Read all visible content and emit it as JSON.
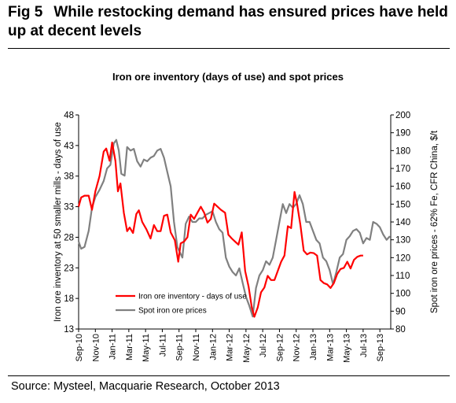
{
  "figure": {
    "number": "Fig 5",
    "title": "While restocking demand has ensured prices have held up at decent levels",
    "source": "Source: Mysteel, Macquarie Research, October 2013"
  },
  "chart_data": {
    "type": "line",
    "title": "Iron ore inventory (days of use) and spot prices",
    "ylabel": "Iron ore inventory at 50 smaller mills - days of use",
    "y2label": "Spot iron ore prices - 62% Fe, CFR China, $/t",
    "ylim": [
      13,
      48
    ],
    "yticks": [
      13,
      18,
      23,
      28,
      33,
      38,
      43,
      48
    ],
    "y2lim": [
      80,
      200
    ],
    "y2ticks": [
      80,
      90,
      100,
      110,
      120,
      130,
      140,
      150,
      160,
      170,
      180,
      190,
      200
    ],
    "xlim": [
      0,
      37.3
    ],
    "xticks": [
      {
        "x": 0,
        "label": "Sep-10"
      },
      {
        "x": 2,
        "label": "Nov-10"
      },
      {
        "x": 4,
        "label": "Jan-11"
      },
      {
        "x": 6,
        "label": "Mar-11"
      },
      {
        "x": 8,
        "label": "May-11"
      },
      {
        "x": 10,
        "label": "Jul-11"
      },
      {
        "x": 12,
        "label": "Sep-11"
      },
      {
        "x": 14,
        "label": "Nov-11"
      },
      {
        "x": 16,
        "label": "Jan-12"
      },
      {
        "x": 18,
        "label": "Mar-12"
      },
      {
        "x": 20,
        "label": "May-12"
      },
      {
        "x": 22,
        "label": "Jul-12"
      },
      {
        "x": 24,
        "label": "Sep-12"
      },
      {
        "x": 26,
        "label": "Nov-12"
      },
      {
        "x": 28,
        "label": "Jan-13"
      },
      {
        "x": 30,
        "label": "Mar-13"
      },
      {
        "x": 32,
        "label": "May-13"
      },
      {
        "x": 34,
        "label": "Jul-13"
      },
      {
        "x": 36,
        "label": "Sep-13"
      }
    ],
    "grid": false,
    "legend_position": "bottom-left",
    "series": [
      {
        "name": "Iron ore inventory - days of use",
        "axis": "left",
        "color": "#ff0000",
        "points": [
          [
            0,
            33.0
          ],
          [
            0.3,
            34.5
          ],
          [
            0.7,
            34.8
          ],
          [
            1.2,
            34.8
          ],
          [
            1.6,
            32.5
          ],
          [
            2.0,
            35.5
          ],
          [
            2.5,
            38.0
          ],
          [
            3.0,
            42.0
          ],
          [
            3.3,
            42.5
          ],
          [
            3.7,
            40.5
          ],
          [
            4.0,
            43.5
          ],
          [
            4.4,
            40.5
          ],
          [
            4.7,
            35.5
          ],
          [
            5.0,
            36.8
          ],
          [
            5.4,
            32.0
          ],
          [
            5.8,
            29.0
          ],
          [
            6.1,
            29.6
          ],
          [
            6.5,
            28.7
          ],
          [
            6.9,
            31.8
          ],
          [
            7.2,
            32.4
          ],
          [
            7.6,
            30.5
          ],
          [
            8.1,
            29.3
          ],
          [
            8.6,
            27.8
          ],
          [
            9.0,
            30.0
          ],
          [
            9.4,
            29.0
          ],
          [
            9.8,
            29.0
          ],
          [
            10.2,
            31.5
          ],
          [
            10.6,
            31.7
          ],
          [
            11.0,
            28.8
          ],
          [
            11.5,
            27.5
          ],
          [
            11.9,
            24.0
          ],
          [
            12.2,
            27.0
          ],
          [
            12.6,
            27.3
          ],
          [
            13.0,
            28.0
          ],
          [
            13.4,
            31.7
          ],
          [
            13.8,
            31.0
          ],
          [
            14.2,
            32.0
          ],
          [
            14.6,
            33.0
          ],
          [
            15.0,
            32.0
          ],
          [
            15.4,
            30.4
          ],
          [
            15.8,
            31.0
          ],
          [
            16.2,
            33.5
          ],
          [
            16.6,
            33.0
          ],
          [
            17.0,
            32.5
          ],
          [
            17.5,
            32.0
          ],
          [
            17.9,
            28.4
          ],
          [
            18.3,
            27.8
          ],
          [
            18.7,
            27.3
          ],
          [
            19.1,
            26.8
          ],
          [
            19.5,
            28.8
          ],
          [
            19.9,
            22.5
          ],
          [
            20.3,
            20.0
          ],
          [
            20.7,
            16.5
          ],
          [
            21.0,
            15.0
          ],
          [
            21.4,
            16.5
          ],
          [
            21.8,
            19.0
          ],
          [
            22.2,
            19.8
          ],
          [
            22.6,
            21.7
          ],
          [
            23.0,
            21.0
          ],
          [
            23.4,
            21.0
          ],
          [
            23.8,
            22.5
          ],
          [
            24.2,
            24.0
          ],
          [
            24.6,
            25.0
          ],
          [
            25.0,
            29.8
          ],
          [
            25.4,
            29.5
          ],
          [
            25.8,
            35.4
          ],
          [
            26.1,
            33.5
          ],
          [
            26.5,
            30.0
          ],
          [
            26.9,
            25.8
          ],
          [
            27.3,
            25.2
          ],
          [
            27.7,
            25.5
          ],
          [
            28.1,
            25.4
          ],
          [
            28.5,
            25.0
          ],
          [
            28.9,
            21.0
          ],
          [
            29.3,
            20.5
          ],
          [
            29.7,
            20.3
          ],
          [
            30.1,
            19.7
          ],
          [
            30.5,
            20.5
          ],
          [
            30.9,
            22.0
          ],
          [
            31.3,
            22.8
          ],
          [
            31.7,
            23.0
          ],
          [
            32.1,
            24.0
          ],
          [
            32.5,
            22.9
          ],
          [
            32.9,
            24.3
          ],
          [
            33.3,
            24.8
          ],
          [
            33.7,
            25.0
          ],
          [
            34.0,
            25.0
          ]
        ]
      },
      {
        "name": "Spot iron ore prices",
        "axis": "right",
        "color": "#808080",
        "points": [
          [
            0,
            129.0
          ],
          [
            0.3,
            125.0
          ],
          [
            0.7,
            126.0
          ],
          [
            1.2,
            135.0
          ],
          [
            1.6,
            148.0
          ],
          [
            2.0,
            154.0
          ],
          [
            2.5,
            158.0
          ],
          [
            3.0,
            163.0
          ],
          [
            3.4,
            170.0
          ],
          [
            3.8,
            172.0
          ],
          [
            4.2,
            184.0
          ],
          [
            4.5,
            186.0
          ],
          [
            4.8,
            180.0
          ],
          [
            5.1,
            167.0
          ],
          [
            5.5,
            166.0
          ],
          [
            5.8,
            182.0
          ],
          [
            6.2,
            180.0
          ],
          [
            6.6,
            181.0
          ],
          [
            7.0,
            174.0
          ],
          [
            7.4,
            171.0
          ],
          [
            7.8,
            175.0
          ],
          [
            8.2,
            174.0
          ],
          [
            8.6,
            176.0
          ],
          [
            9.0,
            177.0
          ],
          [
            9.4,
            180.0
          ],
          [
            9.8,
            181.0
          ],
          [
            10.2,
            176.0
          ],
          [
            10.6,
            168.0
          ],
          [
            11.0,
            160.0
          ],
          [
            11.4,
            140.0
          ],
          [
            11.8,
            126.0
          ],
          [
            12.0,
            124.0
          ],
          [
            12.4,
            120.0
          ],
          [
            12.8,
            139.0
          ],
          [
            13.2,
            143.0
          ],
          [
            13.6,
            140.0
          ],
          [
            14.0,
            140.0
          ],
          [
            14.4,
            142.0
          ],
          [
            14.8,
            142.0
          ],
          [
            15.2,
            144.0
          ],
          [
            15.6,
            145.0
          ],
          [
            16.0,
            146.0
          ],
          [
            16.4,
            140.0
          ],
          [
            16.8,
            136.0
          ],
          [
            17.2,
            134.0
          ],
          [
            17.6,
            120.0
          ],
          [
            18.0,
            115.0
          ],
          [
            18.4,
            112.0
          ],
          [
            18.8,
            110.0
          ],
          [
            19.2,
            114.0
          ],
          [
            19.6,
            106.0
          ],
          [
            20.0,
            98.0
          ],
          [
            20.4,
            93.0
          ],
          [
            20.8,
            87.0
          ],
          [
            21.2,
            103.0
          ],
          [
            21.6,
            110.0
          ],
          [
            22.0,
            113.0
          ],
          [
            22.4,
            118.0
          ],
          [
            22.8,
            116.0
          ],
          [
            23.2,
            120.0
          ],
          [
            23.6,
            130.0
          ],
          [
            24.0,
            140.0
          ],
          [
            24.4,
            150.0
          ],
          [
            24.8,
            145.0
          ],
          [
            25.2,
            150.0
          ],
          [
            25.6,
            148.0
          ],
          [
            26.0,
            150.0
          ],
          [
            26.4,
            155.0
          ],
          [
            26.8,
            150.0
          ],
          [
            27.2,
            140.0
          ],
          [
            27.6,
            140.0
          ],
          [
            28.0,
            135.0
          ],
          [
            28.4,
            130.0
          ],
          [
            28.8,
            128.0
          ],
          [
            29.2,
            120.0
          ],
          [
            29.6,
            118.0
          ],
          [
            30.0,
            113.0
          ],
          [
            30.4,
            105.0
          ],
          [
            30.8,
            112.0
          ],
          [
            31.2,
            120.0
          ],
          [
            31.6,
            122.0
          ],
          [
            32.0,
            130.0
          ],
          [
            32.4,
            132.0
          ],
          [
            32.8,
            135.0
          ],
          [
            33.2,
            136.0
          ],
          [
            33.6,
            134.0
          ],
          [
            34.0,
            128.0
          ],
          [
            34.4,
            131.0
          ],
          [
            34.8,
            130.0
          ],
          [
            35.2,
            140.0
          ],
          [
            35.6,
            139.0
          ],
          [
            36.0,
            137.0
          ],
          [
            36.4,
            133.0
          ],
          [
            36.8,
            130.0
          ],
          [
            37.2,
            132.0
          ]
        ]
      }
    ]
  }
}
